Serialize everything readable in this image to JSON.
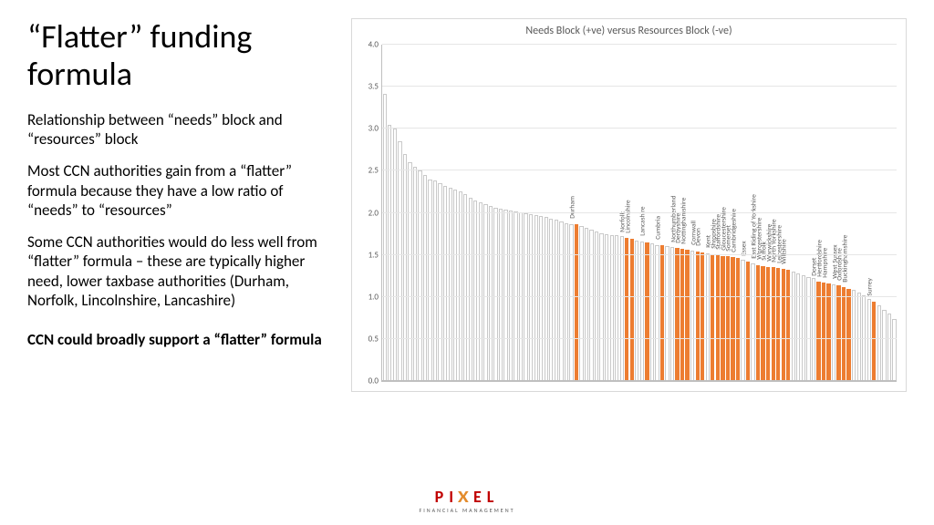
{
  "title": "“Flatter” funding formula",
  "para1": "Relationship between “needs” block and “resources” block",
  "para2": "Most CCN authorities gain from a “flatter” formula because they have a low ratio of “needs” to “resources”",
  "para3": "Some CCN authorities would do less well from “flatter” formula – these are typically higher need, lower taxbase authorities (Durham, Norfolk, Lincolnshire, Lancashire)",
  "para4": "CCN could broadly support a “flatter” formula",
  "logo": {
    "main_left": "PI",
    "main_x": "X",
    "main_right": "EL",
    "sub": "FINANCIAL MANAGEMENT"
  },
  "chart": {
    "type": "bar",
    "title": "Needs Block (+ve) versus Resources Block (-ve)",
    "title_fontsize": 12,
    "title_color": "#595959",
    "ylim": [
      0.0,
      4.0
    ],
    "ytick_step": 0.5,
    "background_color": "#ffffff",
    "grid_color": "#e6e6e6",
    "axis_color": "#bfbfbf",
    "border_color": "#d9d9d9",
    "default_bar_fill": "#ffffff",
    "default_bar_stroke": "rgba(100,100,100,0.35)",
    "highlight_bar_fill": "#ed7d31",
    "label_fontsize": 7.5,
    "label_color": "#595959",
    "ytick_fontsize": 9,
    "bars": [
      {
        "v": 3.42
      },
      {
        "v": 3.05
      },
      {
        "v": 3.0
      },
      {
        "v": 2.85
      },
      {
        "v": 2.7
      },
      {
        "v": 2.6
      },
      {
        "v": 2.55
      },
      {
        "v": 2.5
      },
      {
        "v": 2.45
      },
      {
        "v": 2.4
      },
      {
        "v": 2.38
      },
      {
        "v": 2.35
      },
      {
        "v": 2.32
      },
      {
        "v": 2.3
      },
      {
        "v": 2.28
      },
      {
        "v": 2.25
      },
      {
        "v": 2.22
      },
      {
        "v": 2.18
      },
      {
        "v": 2.15
      },
      {
        "v": 2.12
      },
      {
        "v": 2.1
      },
      {
        "v": 2.08
      },
      {
        "v": 2.06
      },
      {
        "v": 2.05
      },
      {
        "v": 2.04
      },
      {
        "v": 2.03
      },
      {
        "v": 2.02
      },
      {
        "v": 2.01
      },
      {
        "v": 2.0
      },
      {
        "v": 1.98
      },
      {
        "v": 1.97
      },
      {
        "v": 1.96
      },
      {
        "v": 1.95
      },
      {
        "v": 1.93
      },
      {
        "v": 1.92
      },
      {
        "v": 1.9
      },
      {
        "v": 1.88
      },
      {
        "v": 1.87
      },
      {
        "v": 1.86,
        "hl": true,
        "label": "Durham"
      },
      {
        "v": 1.84
      },
      {
        "v": 1.82
      },
      {
        "v": 1.8
      },
      {
        "v": 1.78
      },
      {
        "v": 1.76
      },
      {
        "v": 1.75
      },
      {
        "v": 1.74
      },
      {
        "v": 1.73
      },
      {
        "v": 1.72
      },
      {
        "v": 1.7,
        "hl": true,
        "label": "Norfolk"
      },
      {
        "v": 1.69,
        "hl": true,
        "label": "Lincolnshire"
      },
      {
        "v": 1.67
      },
      {
        "v": 1.66
      },
      {
        "v": 1.65,
        "hl": true,
        "label": "Lancashire"
      },
      {
        "v": 1.64
      },
      {
        "v": 1.62
      },
      {
        "v": 1.61,
        "hl": true,
        "label": "Cumbria"
      },
      {
        "v": 1.6
      },
      {
        "v": 1.59
      },
      {
        "v": 1.58,
        "hl": true,
        "label": "Northumberland"
      },
      {
        "v": 1.57,
        "hl": true,
        "label": "Derbyshire"
      },
      {
        "v": 1.56,
        "hl": true,
        "label": "Nottinghamshire"
      },
      {
        "v": 1.55
      },
      {
        "v": 1.54,
        "hl": true,
        "label": "Cornwall"
      },
      {
        "v": 1.53,
        "hl": true,
        "label": "Devon"
      },
      {
        "v": 1.52
      },
      {
        "v": 1.51,
        "hl": true,
        "label": "Kent"
      },
      {
        "v": 1.5,
        "hl": true,
        "label": "Shropshire"
      },
      {
        "v": 1.49,
        "hl": true,
        "label": "Staffordshire"
      },
      {
        "v": 1.48,
        "hl": true,
        "label": "Gloucestershire"
      },
      {
        "v": 1.47,
        "hl": true,
        "label": "Somerset"
      },
      {
        "v": 1.46,
        "hl": true,
        "label": "Cambridgeshire"
      },
      {
        "v": 1.44
      },
      {
        "v": 1.42,
        "hl": true,
        "label": "Essex"
      },
      {
        "v": 1.4
      },
      {
        "v": 1.38,
        "hl": true,
        "label": "East Riding of Yorkshire"
      },
      {
        "v": 1.37,
        "hl": true,
        "label": "Worcestershire"
      },
      {
        "v": 1.36,
        "hl": true,
        "label": "Suffolk"
      },
      {
        "v": 1.35,
        "hl": true,
        "label": "Warwickshire"
      },
      {
        "v": 1.34,
        "hl": true,
        "label": "North Yorkshire"
      },
      {
        "v": 1.33,
        "hl": true,
        "label": "Leicestershire"
      },
      {
        "v": 1.32,
        "hl": true,
        "label": "Wiltshire"
      },
      {
        "v": 1.3
      },
      {
        "v": 1.28
      },
      {
        "v": 1.26
      },
      {
        "v": 1.24
      },
      {
        "v": 1.22
      },
      {
        "v": 1.18,
        "hl": true,
        "label": "Dorset"
      },
      {
        "v": 1.17,
        "hl": true,
        "label": "Hertfordshire"
      },
      {
        "v": 1.16,
        "hl": true,
        "label": "Hampshire"
      },
      {
        "v": 1.15
      },
      {
        "v": 1.14,
        "hl": true,
        "label": "West Sussex"
      },
      {
        "v": 1.12,
        "hl": true,
        "label": "Oxfordshire"
      },
      {
        "v": 1.1,
        "hl": true,
        "label": "Buckinghamshire"
      },
      {
        "v": 1.08
      },
      {
        "v": 1.05
      },
      {
        "v": 1.02
      },
      {
        "v": 0.98
      },
      {
        "v": 0.94,
        "hl": true,
        "label": "Surrey"
      },
      {
        "v": 0.9
      },
      {
        "v": 0.85
      },
      {
        "v": 0.8
      },
      {
        "v": 0.74
      }
    ]
  }
}
